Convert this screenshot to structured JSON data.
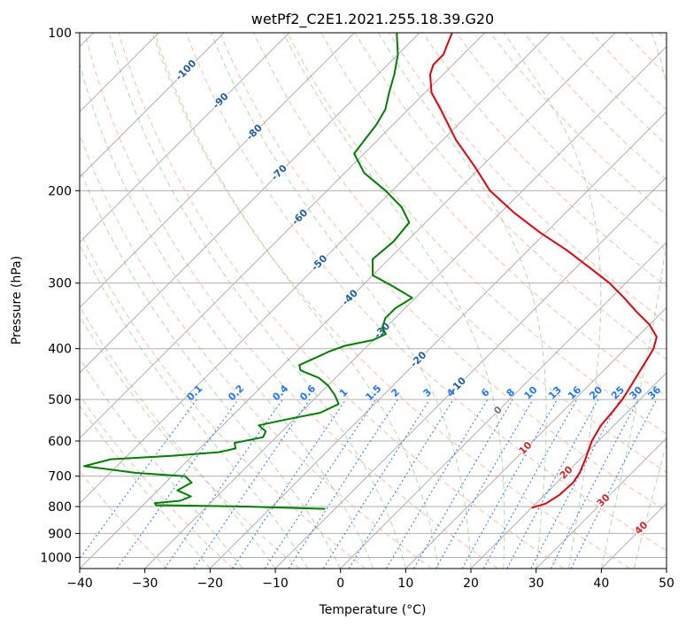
{
  "chart_data": {
    "type": "line",
    "title": "wetPf2_C2E1.2021.255.18.39.G20",
    "xlabel": "Temperature (°C)",
    "ylabel": "Pressure (hPa)",
    "xlim": [
      -40,
      50
    ],
    "ylim": [
      1050,
      100
    ],
    "y_scale": "log",
    "skew": true,
    "grid": true,
    "x_ticks": [
      -40,
      -30,
      -20,
      -10,
      0,
      10,
      20,
      30,
      40,
      50
    ],
    "y_ticks": [
      100,
      200,
      300,
      400,
      500,
      600,
      700,
      800,
      900,
      1000
    ],
    "colors": {
      "temperature": "#e8000b",
      "dewpoint": "#008000",
      "dry_adiabat": "#f4a582",
      "moist_adiabat": "#7fbf7f",
      "mixing_ratio": "#1f77ff",
      "isotherm_label": "#1f5fa0",
      "isotherm_label_positive": "#d62728",
      "isotherm_zero": "#777777",
      "grid": "#b0b0b0"
    },
    "isotherm_labels": [
      {
        "label": "-100",
        "t": -100,
        "p": 118
      },
      {
        "label": "-90",
        "t": -90,
        "p": 135
      },
      {
        "label": "-80",
        "t": -80,
        "p": 155
      },
      {
        "label": "-70",
        "t": -70,
        "p": 185
      },
      {
        "label": "-60",
        "t": -60,
        "p": 225
      },
      {
        "label": "-50",
        "t": -50,
        "p": 275
      },
      {
        "label": "-40",
        "t": -40,
        "p": 320
      },
      {
        "label": "-30",
        "t": -30,
        "p": 370
      },
      {
        "label": "-20",
        "t": -20,
        "p": 420
      },
      {
        "label": "-10",
        "t": -10,
        "p": 470
      },
      {
        "label": "0",
        "t": 0,
        "p": 525
      },
      {
        "label": "10",
        "t": 10,
        "p": 620
      },
      {
        "label": "20",
        "t": 20,
        "p": 690
      },
      {
        "label": "30",
        "t": 30,
        "p": 780
      },
      {
        "label": "40",
        "t": 40,
        "p": 880
      }
    ],
    "mixing_ratio_labels": [
      "0.1",
      "0.2",
      "0.4",
      "0.6",
      "1",
      "1.5",
      "2",
      "3",
      "4",
      "6",
      "8",
      "10",
      "13",
      "16",
      "20",
      "25",
      "30",
      "36"
    ],
    "series": [
      {
        "name": "temperature",
        "color": "#e8000b",
        "points": [
          {
            "p": 804,
            "t": 20.0
          },
          {
            "p": 790,
            "t": 21.5
          },
          {
            "p": 760,
            "t": 22.3
          },
          {
            "p": 720,
            "t": 22.5
          },
          {
            "p": 690,
            "t": 22.0
          },
          {
            "p": 650,
            "t": 20.8
          },
          {
            "p": 600,
            "t": 19.0
          },
          {
            "p": 560,
            "t": 18.0
          },
          {
            "p": 530,
            "t": 17.7
          },
          {
            "p": 500,
            "t": 17.3
          },
          {
            "p": 480,
            "t": 16.8
          },
          {
            "p": 460,
            "t": 16.2
          },
          {
            "p": 440,
            "t": 15.6
          },
          {
            "p": 420,
            "t": 15.0
          },
          {
            "p": 400,
            "t": 14.3
          },
          {
            "p": 380,
            "t": 13.0
          },
          {
            "p": 360,
            "t": 10.0
          },
          {
            "p": 340,
            "t": 6.0
          },
          {
            "p": 320,
            "t": 2.0
          },
          {
            "p": 300,
            "t": -2.5
          },
          {
            "p": 280,
            "t": -8.0
          },
          {
            "p": 260,
            "t": -14.0
          },
          {
            "p": 240,
            "t": -21.0
          },
          {
            "p": 220,
            "t": -28.0
          },
          {
            "p": 200,
            "t": -35.0
          },
          {
            "p": 180,
            "t": -41.0
          },
          {
            "p": 160,
            "t": -48.0
          },
          {
            "p": 140,
            "t": -55.0
          },
          {
            "p": 130,
            "t": -59.0
          },
          {
            "p": 120,
            "t": -62.0
          },
          {
            "p": 115,
            "t": -63.0
          },
          {
            "p": 110,
            "t": -63.0
          },
          {
            "p": 105,
            "t": -64.0
          },
          {
            "p": 100,
            "t": -65.0
          }
        ]
      },
      {
        "name": "dewpoint",
        "color": "#008000",
        "points": [
          {
            "p": 808,
            "t": -11.5
          },
          {
            "p": 800,
            "t": -24.0
          },
          {
            "p": 795,
            "t": -38.0
          },
          {
            "p": 788,
            "t": -38.5
          },
          {
            "p": 780,
            "t": -35.0
          },
          {
            "p": 765,
            "t": -34.0
          },
          {
            "p": 745,
            "t": -37.0
          },
          {
            "p": 720,
            "t": -36.0
          },
          {
            "p": 700,
            "t": -38.0
          },
          {
            "p": 690,
            "t": -46.0
          },
          {
            "p": 670,
            "t": -55.0
          },
          {
            "p": 650,
            "t": -52.0
          },
          {
            "p": 640,
            "t": -43.0
          },
          {
            "p": 630,
            "t": -36.5
          },
          {
            "p": 620,
            "t": -34.5
          },
          {
            "p": 605,
            "t": -35.5
          },
          {
            "p": 590,
            "t": -32.0
          },
          {
            "p": 575,
            "t": -32.5
          },
          {
            "p": 560,
            "t": -34.5
          },
          {
            "p": 545,
            "t": -31.0
          },
          {
            "p": 530,
            "t": -27.0
          },
          {
            "p": 510,
            "t": -25.5
          },
          {
            "p": 490,
            "t": -27.5
          },
          {
            "p": 470,
            "t": -30.0
          },
          {
            "p": 455,
            "t": -32.5
          },
          {
            "p": 440,
            "t": -36.5
          },
          {
            "p": 430,
            "t": -37.5
          },
          {
            "p": 415,
            "t": -36.0
          },
          {
            "p": 405,
            "t": -35.0
          },
          {
            "p": 395,
            "t": -33.5
          },
          {
            "p": 385,
            "t": -30.0
          },
          {
            "p": 375,
            "t": -29.0
          },
          {
            "p": 365,
            "t": -30.5
          },
          {
            "p": 350,
            "t": -31.5
          },
          {
            "p": 335,
            "t": -31.5
          },
          {
            "p": 320,
            "t": -30.5
          },
          {
            "p": 305,
            "t": -35.0
          },
          {
            "p": 290,
            "t": -40.0
          },
          {
            "p": 270,
            "t": -42.5
          },
          {
            "p": 250,
            "t": -42.0
          },
          {
            "p": 230,
            "t": -42.5
          },
          {
            "p": 215,
            "t": -46.0
          },
          {
            "p": 200,
            "t": -51.0
          },
          {
            "p": 185,
            "t": -57.0
          },
          {
            "p": 170,
            "t": -61.5
          },
          {
            "p": 160,
            "t": -62.0
          },
          {
            "p": 150,
            "t": -62.5
          },
          {
            "p": 140,
            "t": -63.5
          },
          {
            "p": 130,
            "t": -65.5
          },
          {
            "p": 120,
            "t": -67.5
          },
          {
            "p": 110,
            "t": -70.0
          },
          {
            "p": 100,
            "t": -73.5
          }
        ]
      }
    ]
  }
}
